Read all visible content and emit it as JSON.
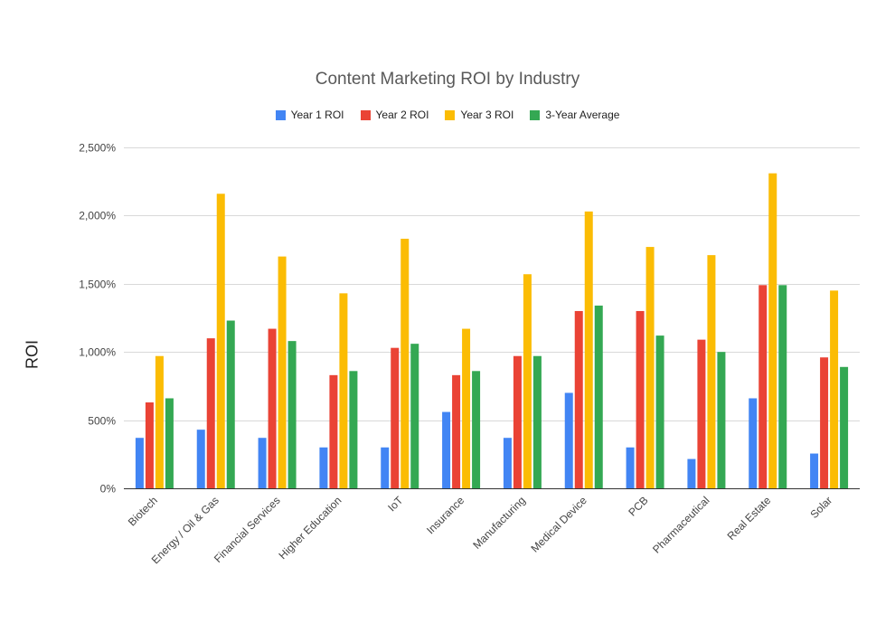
{
  "chart_data": {
    "type": "bar",
    "title": "Content Marketing ROI by Industry",
    "xlabel": "",
    "ylabel": "ROI",
    "ylim": [
      0,
      2500
    ],
    "yticks": [
      {
        "value": 0,
        "label": "0%"
      },
      {
        "value": 500,
        "label": "500%"
      },
      {
        "value": 1000,
        "label": "1,000%"
      },
      {
        "value": 1500,
        "label": "1,500%"
      },
      {
        "value": 2000,
        "label": "2,000%"
      },
      {
        "value": 2500,
        "label": "2,500%"
      }
    ],
    "grid": true,
    "legend_position": "top-center",
    "categories": [
      "Biotech",
      "Energy / Oil & Gas",
      "Financial Services",
      "Higher Education",
      "IoT",
      "Insurance",
      "Manufacturing",
      "Medical Device",
      "PCB",
      "Pharmaceutical",
      "Real Estate",
      "Solar"
    ],
    "series": [
      {
        "name": "Year 1 ROI",
        "color": "#4285F4",
        "values": [
          370,
          430,
          370,
          300,
          300,
          560,
          370,
          700,
          300,
          215,
          660,
          255
        ]
      },
      {
        "name": "Year 2 ROI",
        "color": "#EA4335",
        "values": [
          630,
          1100,
          1170,
          830,
          1030,
          830,
          970,
          1300,
          1300,
          1090,
          1490,
          960
        ]
      },
      {
        "name": "Year 3 ROI",
        "color": "#FBBC04",
        "values": [
          970,
          2160,
          1700,
          1430,
          1830,
          1170,
          1570,
          2030,
          1770,
          1710,
          2310,
          1450
        ]
      },
      {
        "name": "3-Year Average",
        "color": "#34A853",
        "values": [
          660,
          1230,
          1080,
          860,
          1060,
          860,
          970,
          1340,
          1120,
          1000,
          1490,
          890
        ]
      }
    ]
  }
}
